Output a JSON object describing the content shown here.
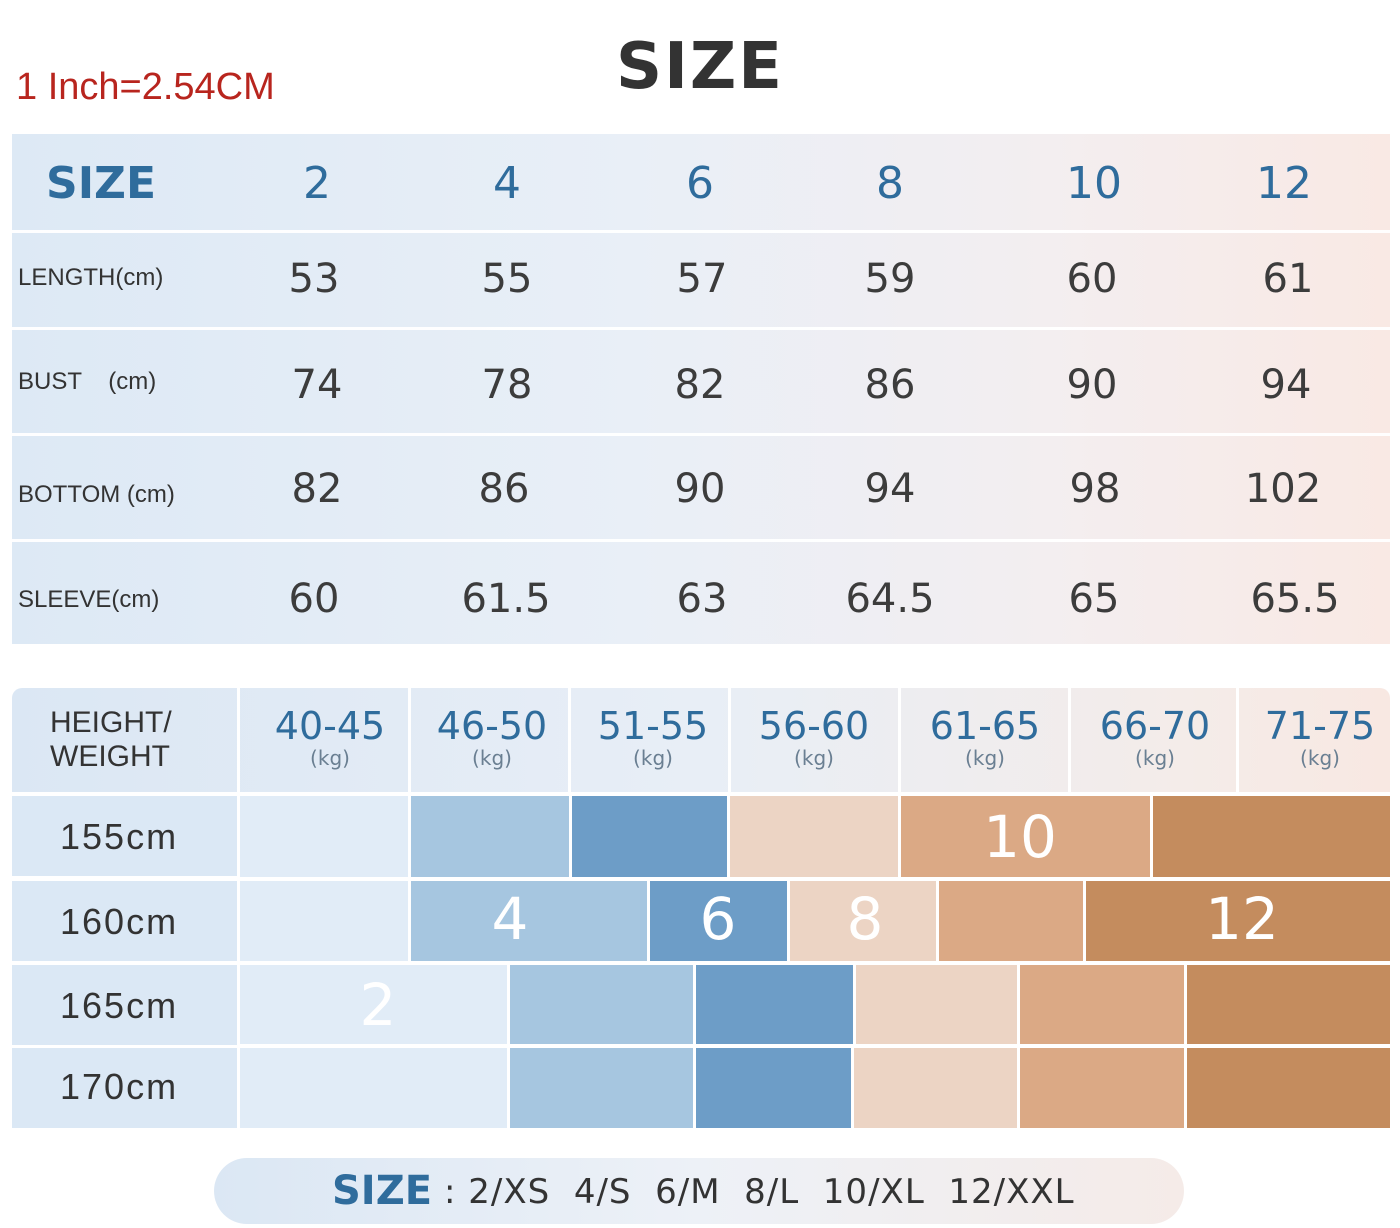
{
  "note": "1 Inch=2.54CM",
  "title": "SIZE",
  "measure_table": {
    "size_label": "SIZE",
    "sizes": [
      "2",
      "4",
      "6",
      "8",
      "10",
      "12"
    ],
    "rows": [
      {
        "label": "LENGTH(cm)",
        "values": [
          "53",
          "55",
          "57",
          "59",
          "60",
          "61"
        ]
      },
      {
        "label": "BUST    (cm)",
        "values": [
          "74",
          "78",
          "82",
          "86",
          "90",
          "94"
        ]
      },
      {
        "label": "BOTTOM (cm)",
        "values": [
          "82",
          "86",
          "90",
          "94",
          "98",
          "102"
        ]
      },
      {
        "label": "SLEEVE(cm)",
        "values": [
          "60",
          "61.5",
          "63",
          "64.5",
          "65",
          "65.5"
        ]
      }
    ]
  },
  "hw_table": {
    "label_line1": "HEIGHT/",
    "label_line2": "WEIGHT",
    "weights": [
      {
        "range": "40-45",
        "unit": "(kg)"
      },
      {
        "range": "46-50",
        "unit": "(kg)"
      },
      {
        "range": "51-55",
        "unit": "(kg)"
      },
      {
        "range": "56-60",
        "unit": "(kg)"
      },
      {
        "range": "61-65",
        "unit": "(kg)"
      },
      {
        "range": "66-70",
        "unit": "(kg)"
      },
      {
        "range": "71-75",
        "unit": "(kg)"
      }
    ],
    "heights": [
      "155cm",
      "160cm",
      "165cm",
      "170cm"
    ],
    "size_marks": [
      "2",
      "4",
      "6",
      "8",
      "10",
      "12"
    ]
  },
  "colors": {
    "size_2": "#e1ecf7",
    "size_4": "#a6c6e0",
    "size_6": "#6d9dc7",
    "size_8": "#ecd4c4",
    "size_10": "#dba985",
    "size_12": "#c48c5e"
  },
  "footer": {
    "label": "SIZE",
    "text": ": 2/XS  4/S  6/M  8/L  10/XL  12/XXL"
  }
}
